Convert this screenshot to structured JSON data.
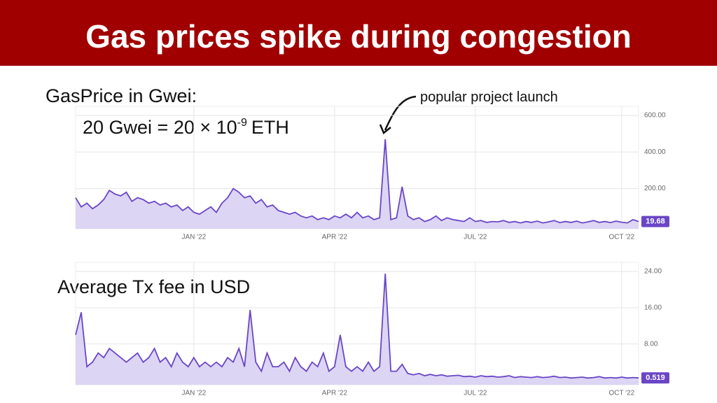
{
  "header": {
    "title": "Gas prices spike during congestion"
  },
  "labels": {
    "gas_caption": "GasPrice in Gwei:",
    "formula_main": "20 Gwei = 20 × 10",
    "formula_exp": "-9",
    "formula_unit": "ETH",
    "fee_caption": "Average Tx fee in USD"
  },
  "chart_data": [
    {
      "type": "line",
      "annotation": "popular project launch",
      "color": "#6a46c7",
      "fill": "#ddd5f4",
      "grid": true,
      "categories": [
        null,
        null,
        null,
        null,
        null,
        null,
        null,
        null,
        null,
        null,
        null,
        null,
        null,
        null,
        null,
        null,
        null,
        null,
        null,
        null,
        null,
        "JAN '22",
        null,
        null,
        null,
        null,
        null,
        null,
        null,
        null,
        null,
        null,
        null,
        null,
        null,
        null,
        null,
        null,
        null,
        null,
        null,
        null,
        null,
        null,
        null,
        null,
        "APR '22",
        null,
        null,
        null,
        null,
        null,
        null,
        null,
        null,
        null,
        null,
        null,
        null,
        null,
        null,
        null,
        null,
        null,
        null,
        null,
        null,
        null,
        null,
        null,
        null,
        "JUL '22",
        null,
        null,
        null,
        null,
        null,
        null,
        null,
        null,
        null,
        null,
        null,
        null,
        null,
        null,
        null,
        null,
        null,
        null,
        null,
        null,
        null,
        null,
        null,
        null,
        null,
        "OCT '22",
        null,
        null,
        null
      ],
      "values": [
        150,
        100,
        120,
        90,
        110,
        140,
        190,
        170,
        160,
        180,
        130,
        150,
        140,
        120,
        130,
        110,
        120,
        100,
        110,
        80,
        100,
        70,
        60,
        80,
        100,
        70,
        120,
        150,
        200,
        180,
        150,
        160,
        120,
        140,
        100,
        110,
        80,
        70,
        60,
        70,
        50,
        40,
        50,
        30,
        40,
        30,
        50,
        40,
        60,
        40,
        70,
        40,
        50,
        30,
        40,
        470,
        30,
        40,
        210,
        50,
        30,
        40,
        20,
        30,
        50,
        25,
        40,
        30,
        25,
        20,
        40,
        20,
        25,
        15,
        20,
        18,
        25,
        15,
        20,
        12,
        20,
        15,
        22,
        12,
        18,
        25,
        14,
        20,
        15,
        22,
        12,
        18,
        25,
        15,
        20,
        14,
        22,
        16,
        12,
        30,
        19.68
      ],
      "value_labels": [
        null,
        null,
        null,
        null,
        null,
        null,
        null,
        null,
        null,
        null,
        null,
        null,
        null,
        null,
        null,
        null,
        null,
        null,
        null,
        null,
        null,
        null,
        null,
        null,
        null,
        null,
        null,
        null,
        null,
        null,
        null,
        null,
        null,
        null,
        null,
        null,
        null,
        null,
        null,
        null,
        null,
        null,
        null,
        null,
        null,
        null,
        null,
        null,
        null,
        null,
        null,
        null,
        null,
        null,
        null,
        null,
        null,
        null,
        null,
        null,
        null,
        null,
        null,
        null,
        null,
        null,
        null,
        null,
        null,
        null,
        null,
        null,
        null,
        null,
        null,
        null,
        null,
        null,
        null,
        null,
        null,
        null,
        null,
        null,
        null,
        null,
        null,
        null,
        null,
        null,
        null,
        null,
        null,
        null,
        null,
        null,
        null,
        null,
        null,
        null,
        "19.68"
      ],
      "ylim": [
        -20,
        650
      ],
      "yticks": [
        {
          "value": 200,
          "label": "200.00"
        },
        {
          "value": 400,
          "label": "400.00"
        },
        {
          "value": 600,
          "label": "600.00"
        }
      ]
    },
    {
      "type": "line",
      "color": "#6a46c7",
      "fill": "#ddd5f4",
      "grid": true,
      "categories": [
        null,
        null,
        null,
        null,
        null,
        null,
        null,
        null,
        null,
        null,
        null,
        null,
        null,
        null,
        null,
        null,
        null,
        null,
        null,
        null,
        null,
        "JAN '22",
        null,
        null,
        null,
        null,
        null,
        null,
        null,
        null,
        null,
        null,
        null,
        null,
        null,
        null,
        null,
        null,
        null,
        null,
        null,
        null,
        null,
        null,
        null,
        null,
        "APR '22",
        null,
        null,
        null,
        null,
        null,
        null,
        null,
        null,
        null,
        null,
        null,
        null,
        null,
        null,
        null,
        null,
        null,
        null,
        null,
        null,
        null,
        null,
        null,
        null,
        "JUL '22",
        null,
        null,
        null,
        null,
        null,
        null,
        null,
        null,
        null,
        null,
        null,
        null,
        null,
        null,
        null,
        null,
        null,
        null,
        null,
        null,
        null,
        null,
        null,
        null,
        null,
        "OCT '22",
        null,
        null,
        null
      ],
      "values": [
        10,
        15,
        3,
        4,
        6,
        5,
        7,
        6,
        5,
        4,
        5,
        6,
        4,
        5,
        7,
        4,
        5,
        3,
        6,
        4,
        3,
        5,
        3,
        4,
        3,
        4,
        3,
        5,
        4,
        7,
        3,
        15.5,
        4,
        2,
        6,
        3,
        3,
        4,
        2,
        5,
        3,
        2,
        4,
        3,
        6,
        2,
        3,
        10,
        3,
        2,
        3,
        2,
        4,
        2,
        3,
        23.5,
        2,
        2,
        3.5,
        1.5,
        1.2,
        1.5,
        1,
        1.3,
        1,
        1.2,
        0.9,
        1,
        1.1,
        0.8,
        0.9,
        0.7,
        1,
        0.8,
        0.9,
        0.7,
        0.8,
        1,
        0.6,
        0.8,
        0.7,
        0.6,
        0.8,
        0.6,
        0.7,
        0.9,
        0.6,
        0.7,
        0.5,
        0.6,
        0.7,
        0.5,
        0.6,
        0.8,
        0.5,
        0.6,
        0.5,
        0.7,
        0.5,
        0.6,
        0.519
      ],
      "value_labels": [
        null,
        null,
        null,
        null,
        null,
        null,
        null,
        null,
        null,
        null,
        null,
        null,
        null,
        null,
        null,
        null,
        null,
        null,
        null,
        null,
        null,
        null,
        null,
        null,
        null,
        null,
        null,
        null,
        null,
        null,
        null,
        null,
        null,
        null,
        null,
        null,
        null,
        null,
        null,
        null,
        null,
        null,
        null,
        null,
        null,
        null,
        null,
        null,
        null,
        null,
        null,
        null,
        null,
        null,
        null,
        null,
        null,
        null,
        null,
        null,
        null,
        null,
        null,
        null,
        null,
        null,
        null,
        null,
        null,
        null,
        null,
        null,
        null,
        null,
        null,
        null,
        null,
        null,
        null,
        null,
        null,
        null,
        null,
        null,
        null,
        null,
        null,
        null,
        null,
        null,
        null,
        null,
        null,
        null,
        null,
        null,
        null,
        null,
        null,
        null,
        "0.519"
      ],
      "ylim": [
        -1,
        26
      ],
      "yticks": [
        {
          "value": 8,
          "label": "8.00"
        },
        {
          "value": 16,
          "label": "16.00"
        },
        {
          "value": 24,
          "label": "24.00"
        }
      ]
    }
  ]
}
